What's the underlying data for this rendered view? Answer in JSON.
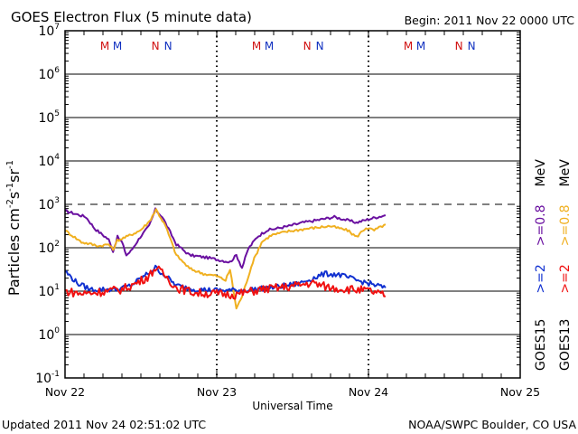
{
  "chart_data": {
    "type": "line",
    "title": "GOES Electron Flux (5 minute data)",
    "begin_label": "Begin: 2011 Nov 22 0000 UTC",
    "xlabel": "Universal Time",
    "ylabel": "Particles cm",
    "ylabel_units": [
      "-2",
      "s",
      "-1",
      "sr",
      "-1"
    ],
    "yscale": "log",
    "ylim_exp": [
      -1,
      7
    ],
    "y_ticks": [
      {
        "base": "10",
        "exp": "7",
        "v": 7
      },
      {
        "base": "10",
        "exp": "6",
        "v": 6
      },
      {
        "base": "10",
        "exp": "5",
        "v": 5
      },
      {
        "base": "10",
        "exp": "4",
        "v": 4
      },
      {
        "base": "10",
        "exp": "3",
        "v": 3
      },
      {
        "base": "10",
        "exp": "2",
        "v": 2
      },
      {
        "base": "10",
        "exp": "1",
        "v": 1
      },
      {
        "base": "10",
        "exp": "0",
        "v": 0
      },
      {
        "base": "10",
        "exp": "-1",
        "v": -1
      }
    ],
    "xlim_hours": [
      0,
      72
    ],
    "x_ticks": [
      {
        "label": "Nov 22",
        "h": 0
      },
      {
        "label": "Nov 23",
        "h": 24
      },
      {
        "label": "Nov 24",
        "h": 48
      },
      {
        "label": "Nov 25",
        "h": 72
      }
    ],
    "threshold_log": 3,
    "grid": true,
    "markers": [
      {
        "text": "M",
        "h": 6.3,
        "color": "#d01010"
      },
      {
        "text": "M",
        "h": 8.3,
        "color": "#1030c0"
      },
      {
        "text": "N",
        "h": 14.3,
        "color": "#d01010"
      },
      {
        "text": "N",
        "h": 16.3,
        "color": "#1030c0"
      },
      {
        "text": "M",
        "h": 30.3,
        "color": "#d01010"
      },
      {
        "text": "M",
        "h": 32.3,
        "color": "#1030c0"
      },
      {
        "text": "N",
        "h": 38.3,
        "color": "#d01010"
      },
      {
        "text": "N",
        "h": 40.3,
        "color": "#1030c0"
      },
      {
        "text": "M",
        "h": 54.3,
        "color": "#d01010"
      },
      {
        "text": "M",
        "h": 56.3,
        "color": "#1030c0"
      },
      {
        "text": "N",
        "h": 62.3,
        "color": "#d01010"
      },
      {
        "text": "N",
        "h": 64.3,
        "color": "#1030c0"
      }
    ],
    "series": [
      {
        "name": "GOES15 >=0.8 MeV",
        "color": "#6a10a0",
        "hours": [
          0,
          3.3,
          4.7,
          6.9,
          7.6,
          8.3,
          9.0,
          9.7,
          10.4,
          11.9,
          13.3,
          14.3,
          15.4,
          17.6,
          19.7,
          22.6,
          24.7,
          26.1,
          27.1,
          28.0,
          29.0,
          30.4,
          31.9,
          35.4,
          37.6,
          39.7,
          42.6,
          46.1,
          48.3,
          50.7
        ],
        "log10": [
          2.85,
          2.71,
          2.44,
          2.19,
          1.92,
          2.25,
          2.13,
          1.83,
          1.92,
          2.25,
          2.5,
          2.88,
          2.71,
          2.08,
          1.83,
          1.77,
          1.71,
          1.67,
          1.83,
          1.54,
          1.98,
          2.25,
          2.4,
          2.5,
          2.58,
          2.63,
          2.71,
          2.58,
          2.67,
          2.75
        ]
      },
      {
        "name": "GOES13 >=0.8 MeV",
        "color": "#f0b020",
        "hours": [
          0,
          2.6,
          5.4,
          6.9,
          7.6,
          8.3,
          9.7,
          11.9,
          13.3,
          14.4,
          15.9,
          17.6,
          19.7,
          21.9,
          24.0,
          25.4,
          26.1,
          27.1,
          28.0,
          29.7,
          31.1,
          32.6,
          35.4,
          38.3,
          41.9,
          44.7,
          46.1,
          47.6,
          48.9,
          50.7
        ],
        "log10": [
          2.4,
          2.13,
          2.04,
          2.08,
          1.96,
          2.17,
          2.25,
          2.4,
          2.6,
          2.88,
          2.5,
          1.83,
          1.52,
          1.4,
          1.35,
          1.25,
          1.5,
          0.6,
          0.88,
          1.67,
          2.13,
          2.29,
          2.38,
          2.44,
          2.5,
          2.4,
          2.25,
          2.46,
          2.4,
          2.54
        ]
      },
      {
        "name": "GOES15 >=2 MeV",
        "color": "#1030d0",
        "hours": [
          0,
          1.9,
          4.0,
          8.3,
          10.4,
          12.6,
          14.3,
          15.9,
          17.6,
          20.6,
          24.0,
          28.3,
          32.6,
          36.9,
          41.1,
          43.3,
          46.1,
          48.3,
          50.7
        ],
        "log10": [
          1.46,
          1.19,
          1.04,
          1.04,
          1.13,
          1.35,
          1.54,
          1.35,
          1.13,
          1.04,
          1.02,
          1.02,
          1.08,
          1.17,
          1.4,
          1.38,
          1.25,
          1.17,
          1.08
        ]
      },
      {
        "name": "GOES13 >=2 MeV",
        "color": "#f01010",
        "hours": [
          0,
          2.6,
          5.4,
          9.0,
          11.1,
          13.3,
          14.3,
          15.9,
          17.6,
          20.6,
          24.0,
          26.9,
          31.1,
          35.4,
          39.0,
          41.9,
          45.4,
          48.3,
          50.7
        ],
        "log10": [
          1.0,
          0.94,
          0.98,
          1.04,
          1.17,
          1.35,
          1.54,
          1.35,
          1.08,
          0.96,
          0.94,
          0.92,
          1.04,
          1.1,
          1.19,
          1.08,
          1.04,
          1.0,
          0.88
        ]
      }
    ],
    "legend": [
      {
        "text": "GOES15",
        "color": "#000000",
        "col": 1
      },
      {
        "text": ">=2",
        "color": "#1030d0",
        "col": 1
      },
      {
        "text": ">=0.8",
        "color": "#6a10a0",
        "col": 1
      },
      {
        "text": "MeV",
        "color": "#000000",
        "col": 1
      },
      {
        "text": "GOES13",
        "color": "#000000",
        "col": 2
      },
      {
        "text": ">=2",
        "color": "#f01010",
        "col": 2
      },
      {
        "text": ">=0.8",
        "color": "#f0b020",
        "col": 2
      },
      {
        "text": "MeV",
        "color": "#000000",
        "col": 2
      }
    ],
    "legend_placement": "right"
  },
  "footer": {
    "updated": "Updated 2011 Nov 24 02:51:02 UTC",
    "credit": "NOAA/SWPC Boulder, CO USA"
  }
}
